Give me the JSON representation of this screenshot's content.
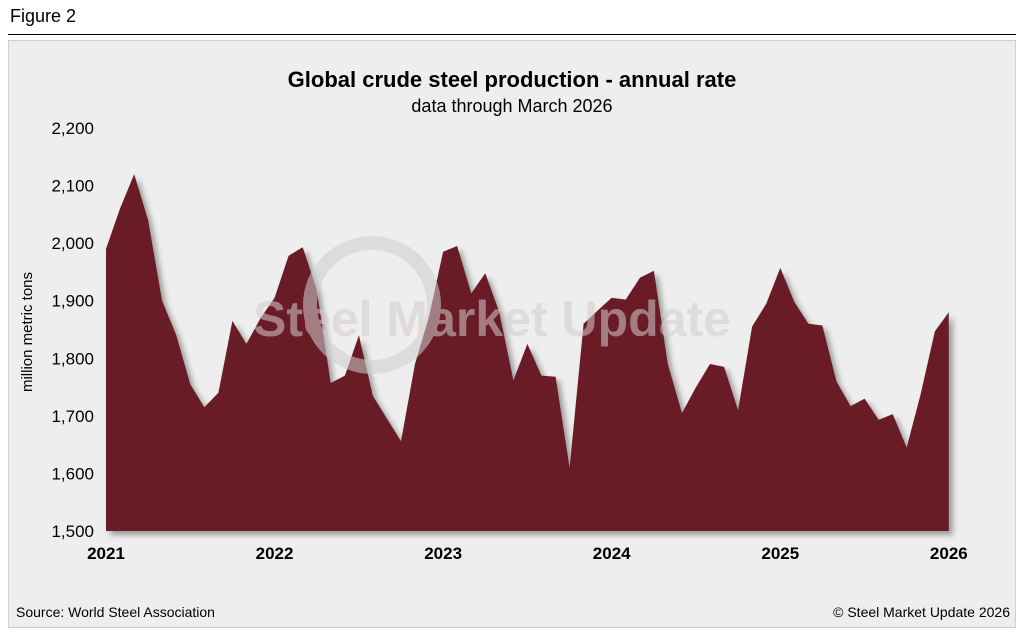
{
  "figure_label": "Figure 2",
  "source": "Source: World Steel Association",
  "copyright": "© Steel Market Update 2026",
  "watermark": "Steel Market Update",
  "colors": {
    "area": "#6b1f27",
    "background": "#eeeeee",
    "watermark": "#cfcfcf"
  },
  "chart_data": {
    "type": "area",
    "title": "Global crude steel production - annual rate",
    "subtitle": "data through March 2026",
    "xlabel": "",
    "ylabel": "million metric tons",
    "ylim": [
      1500,
      2200
    ],
    "yticks": [
      1500,
      1600,
      1700,
      1800,
      1900,
      2000,
      2100,
      2200
    ],
    "ytick_labels": [
      "1,500",
      "1,600",
      "1,700",
      "1,800",
      "1,900",
      "2,000",
      "2,100",
      "2,200"
    ],
    "xlim": [
      2021,
      2026.167
    ],
    "xticks": [
      2021,
      2022,
      2023,
      2024,
      2025,
      2026
    ],
    "xtick_labels": [
      "2021",
      "2022",
      "2023",
      "2024",
      "2025",
      "2026"
    ],
    "grid": false,
    "series": [
      {
        "name": "Global crude steel production",
        "x": [
          2021.0,
          2021.083,
          2021.167,
          2021.25,
          2021.333,
          2021.417,
          2021.5,
          2021.583,
          2021.667,
          2021.75,
          2021.833,
          2021.917,
          2022.0,
          2022.083,
          2022.167,
          2022.25,
          2022.333,
          2022.417,
          2022.5,
          2022.583,
          2022.667,
          2022.75,
          2022.833,
          2022.917,
          2023.0,
          2023.083,
          2023.167,
          2023.25,
          2023.333,
          2023.417,
          2023.5,
          2023.583,
          2023.667,
          2023.75,
          2023.833,
          2023.917,
          2024.0,
          2024.083,
          2024.167,
          2024.25,
          2024.333,
          2024.417,
          2024.5,
          2024.583,
          2024.667,
          2024.75,
          2024.833,
          2024.917,
          2025.0,
          2025.083,
          2025.167,
          2025.25,
          2025.333,
          2025.417,
          2025.5,
          2025.583,
          2025.667,
          2025.75,
          2025.833,
          2025.917,
          2026.0,
          2026.083,
          2026.167
        ],
        "values": [
          1990,
          2060,
          2120,
          2040,
          1900,
          1840,
          1755,
          1715,
          1740,
          1865,
          1825,
          1870,
          1905,
          1978,
          1993,
          1920,
          1757,
          1770,
          1840,
          1735,
          1695,
          1656,
          1790,
          1873,
          1985,
          1995,
          1913,
          1948,
          1880,
          1762,
          1825,
          1770,
          1768,
          1610,
          1860,
          1883,
          1905,
          1902,
          1940,
          1952,
          1790,
          1705,
          1750,
          1790,
          1785,
          1710,
          1855,
          1895,
          1957,
          1898,
          1860,
          1857,
          1760,
          1717,
          1730,
          1693,
          1703,
          1645,
          1738,
          1847,
          1880,
          null,
          null
        ]
      }
    ]
  }
}
